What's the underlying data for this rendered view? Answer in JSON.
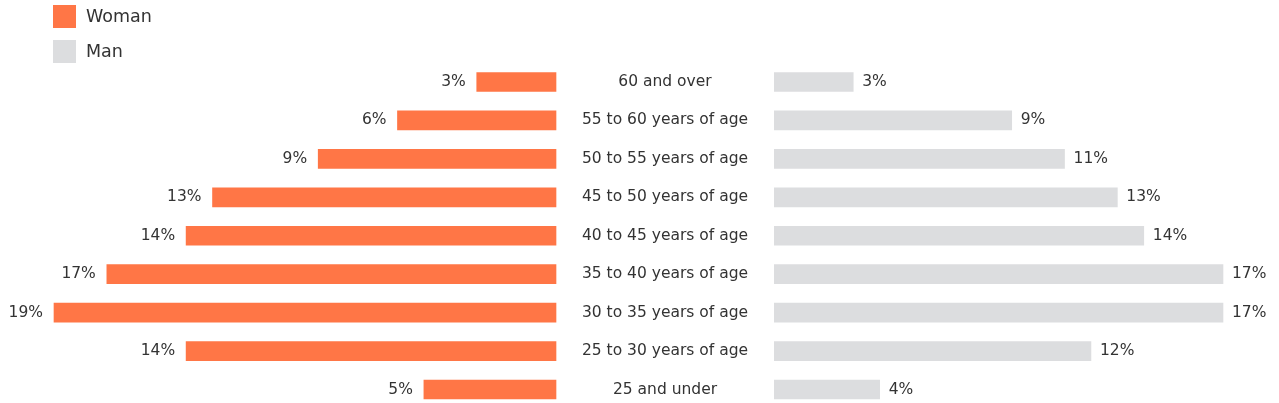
{
  "chart_data": [
    {
      "type": "bar",
      "orientation": "horizontal",
      "legend": "top left",
      "tick_labels": "y",
      "xlim": [
        19,
        0
      ],
      "categories": [
        "60 and over",
        "55 to 60 years of age",
        "50 to 55 years of age",
        "45 to 50 years of age",
        "40 to 45 years of age",
        "35 to 40 years of age",
        "30 to 35 years of age",
        "25 to 30 years of age",
        "25 and under"
      ],
      "series": [
        {
          "name": "Woman",
          "color": "#ff7646",
          "values": [
            3,
            6,
            9,
            13,
            14,
            17,
            19,
            14,
            5
          ],
          "value_labels": [
            "3%",
            "6%",
            "9%",
            "13%",
            "14%",
            "17%",
            "19%",
            "14%",
            "5%"
          ]
        }
      ]
    },
    {
      "type": "bar",
      "orientation": "horizontal",
      "legend": "top left",
      "xlim": [
        0,
        17
      ],
      "categories": [
        null,
        null,
        null,
        null,
        null,
        null,
        null,
        null,
        null
      ],
      "series": [
        {
          "name": "Man",
          "color": "#dcdddf",
          "values": [
            3,
            9,
            11,
            13,
            14,
            17,
            17,
            12,
            4
          ],
          "value_labels": [
            "3%",
            "9%",
            "11%",
            "13%",
            "14%",
            "17%",
            "17%",
            "12%",
            "4%"
          ]
        }
      ]
    }
  ]
}
